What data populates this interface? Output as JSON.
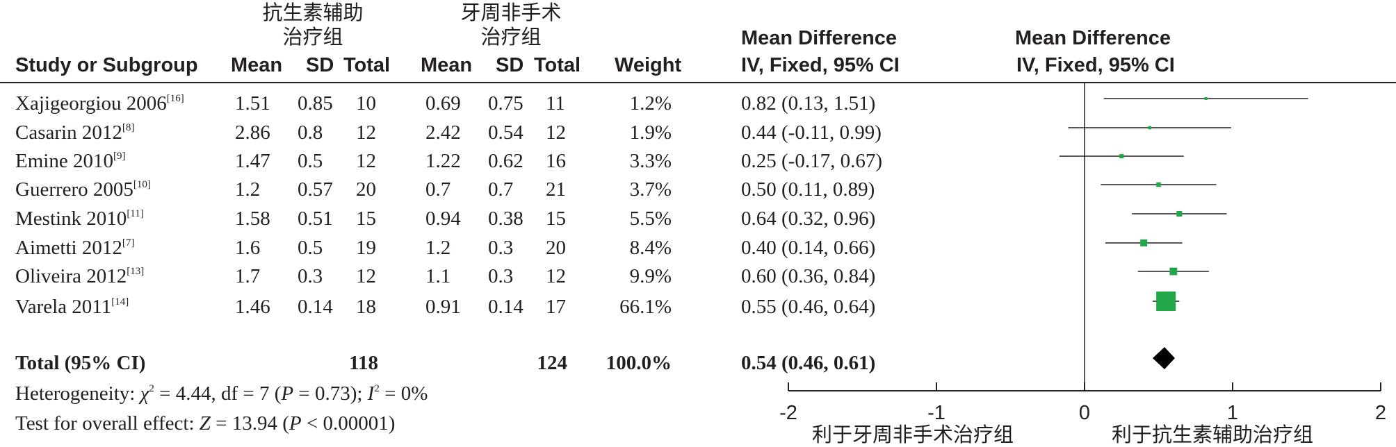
{
  "header": {
    "group1_name_line1": "抗生素辅助",
    "group1_name_line2": "治疗组",
    "group2_name_line1": "牙周非手术",
    "group2_name_line2": "治疗组",
    "col_study": "Study or Subgroup",
    "col_mean": "Mean",
    "col_sd": "SD",
    "col_total": "Total",
    "col_weight": "Weight",
    "col_md_line1": "Mean Difference",
    "col_md_line2": "IV, Fixed, 95% CI",
    "plot_md_line1": "Mean Difference",
    "plot_md_line2": "IV, Fixed, 95% CI"
  },
  "studies": [
    {
      "name": "Xajigeorgiou 2006",
      "ref": "[16]",
      "mean1": "1.51",
      "sd1": "0.85",
      "n1": "10",
      "mean2": "0.69",
      "sd2": "0.75",
      "n2": "11",
      "weight": "1.2%",
      "md_text": "0.82 (0.13, 1.51)"
    },
    {
      "name": "Casarin 2012",
      "ref": "[8]",
      "mean1": "2.86",
      "sd1": "0.8",
      "n1": "12",
      "mean2": "2.42",
      "sd2": "0.54",
      "n2": "12",
      "weight": "1.9%",
      "md_text": "0.44 (-0.11, 0.99)"
    },
    {
      "name": "Emine 2010",
      "ref": "[9]",
      "mean1": "1.47",
      "sd1": "0.5",
      "n1": "12",
      "mean2": "1.22",
      "sd2": "0.62",
      "n2": "16",
      "weight": "3.3%",
      "md_text": "0.25 (-0.17, 0.67)"
    },
    {
      "name": "Guerrero 2005",
      "ref": "[10]",
      "mean1": "1.2",
      "sd1": "0.57",
      "n1": "20",
      "mean2": "0.7",
      "sd2": "0.7",
      "n2": "21",
      "weight": "3.7%",
      "md_text": "0.50 (0.11, 0.89)"
    },
    {
      "name": "Mestink 2010",
      "ref": "[11]",
      "mean1": "1.58",
      "sd1": "0.51",
      "n1": "15",
      "mean2": "0.94",
      "sd2": "0.38",
      "n2": "15",
      "weight": "5.5%",
      "md_text": "0.64 (0.32, 0.96)"
    },
    {
      "name": "Aimetti 2012",
      "ref": "[7]",
      "mean1": "1.6",
      "sd1": "0.5",
      "n1": "19",
      "mean2": "1.2",
      "sd2": "0.3",
      "n2": "20",
      "weight": "8.4%",
      "md_text": "0.40 (0.14, 0.66)"
    },
    {
      "name": "Oliveira 2012",
      "ref": "[13]",
      "mean1": "1.7",
      "sd1": "0.3",
      "n1": "12",
      "mean2": "1.1",
      "sd2": "0.3",
      "n2": "12",
      "weight": "9.9%",
      "md_text": "0.60 (0.36, 0.84)"
    },
    {
      "name": "Varela 2011",
      "ref": "[14]",
      "mean1": "1.46",
      "sd1": "0.14",
      "n1": "18",
      "mean2": "0.91",
      "sd2": "0.14",
      "n2": "17",
      "weight": "66.1%",
      "md_text": "0.55 (0.46, 0.64)"
    }
  ],
  "total": {
    "label": "Total (95% CI)",
    "n1": "118",
    "n2": "124",
    "weight": "100.0%",
    "md_text": "0.54 (0.46, 0.61)"
  },
  "footer": {
    "heterogeneity_prefix": "Heterogeneity: ",
    "chi": "χ",
    "chi_sup": "2",
    "het_mid": " = 4.44, df = 7 (",
    "p_italic": "P",
    "het_p": " = 0.73); ",
    "i_italic": "I",
    "i_sup": "2",
    "het_end": " = 0%",
    "overall_prefix": "Test for overall effect: ",
    "z_italic": "Z",
    "overall_mid": " = 13.94 (",
    "p2_italic": "P",
    "overall_end": " < 0.00001)"
  },
  "axis_labels": {
    "favours_left": "利于牙周非手术治疗组",
    "favours_right": "利于抗生素辅助治疗组"
  },
  "colors": {
    "study_marker": "#22a84a",
    "diamond": "#000000",
    "text": "#231f20"
  },
  "chart_data": {
    "type": "forest",
    "xlim": [
      -2,
      2
    ],
    "xticks": [
      "-2",
      "-1",
      "0",
      "1",
      "2"
    ],
    "xtick_values": [
      -2,
      -1,
      0,
      1,
      2
    ],
    "points": [
      {
        "md": 0.82,
        "lo": 0.13,
        "hi": 1.51,
        "weight": 1.2
      },
      {
        "md": 0.44,
        "lo": -0.11,
        "hi": 0.99,
        "weight": 1.9
      },
      {
        "md": 0.25,
        "lo": -0.17,
        "hi": 0.67,
        "weight": 3.3
      },
      {
        "md": 0.5,
        "lo": 0.11,
        "hi": 0.89,
        "weight": 3.7
      },
      {
        "md": 0.64,
        "lo": 0.32,
        "hi": 0.96,
        "weight": 5.5
      },
      {
        "md": 0.4,
        "lo": 0.14,
        "hi": 0.66,
        "weight": 8.4
      },
      {
        "md": 0.6,
        "lo": 0.36,
        "hi": 0.84,
        "weight": 9.9
      },
      {
        "md": 0.55,
        "lo": 0.46,
        "hi": 0.64,
        "weight": 66.1
      }
    ],
    "pooled": {
      "md": 0.54,
      "lo": 0.46,
      "hi": 0.61,
      "weight": 100.0
    }
  }
}
